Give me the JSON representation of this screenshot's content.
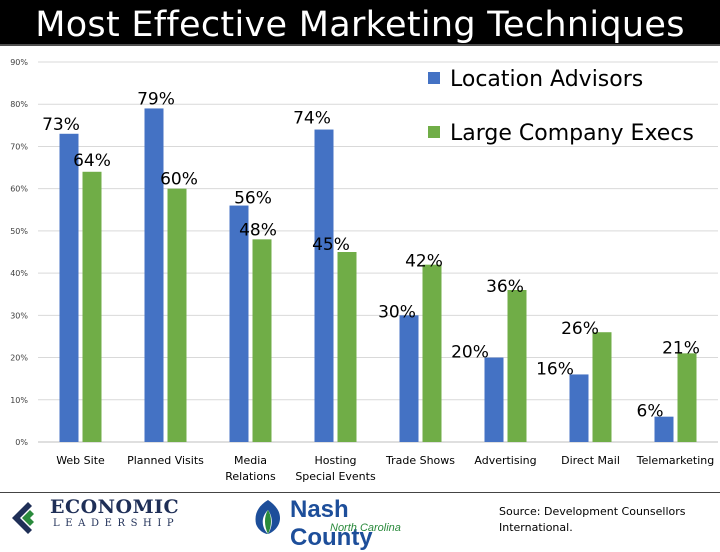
{
  "title": "Most Effective Marketing Techniques",
  "source_text": "Source: Development Counsellors International.",
  "logos": {
    "economic_line1": "ECONOMIC",
    "economic_line2": "LEADERSHIP",
    "nash_line1": "Nash County",
    "nash_line2": "North Carolina"
  },
  "colors": {
    "title_bg": "#000000",
    "title_text": "#ffffff",
    "series_blue": "#4472c4",
    "series_green": "#70ad47",
    "gridline": "#d9d9d9"
  },
  "chart_data": {
    "type": "bar",
    "title": "Most Effective Marketing Techniques",
    "categories": [
      [
        "Web Site"
      ],
      [
        "Planned Visits"
      ],
      [
        "Media",
        "Relations"
      ],
      [
        "Hosting",
        "Special Events"
      ],
      [
        "Trade Shows"
      ],
      [
        "Advertising"
      ],
      [
        "Direct Mail"
      ],
      [
        "Telemarketing"
      ]
    ],
    "series": [
      {
        "name": "Location Advisors",
        "color": "#4472c4",
        "values": [
          73,
          79,
          56,
          74,
          30,
          20,
          16,
          6
        ]
      },
      {
        "name": "Large Company Execs",
        "color": "#70ad47",
        "values": [
          64,
          60,
          48,
          45,
          42,
          36,
          26,
          21
        ]
      }
    ],
    "data_labels": [
      [
        "73%",
        "79%",
        "56%",
        "74%",
        "30%",
        "20%",
        "16%",
        "6%"
      ],
      [
        "64%",
        "60%",
        "48%",
        "45%",
        "42%",
        "36%",
        "26%",
        "21%"
      ]
    ],
    "yticks": [
      "0%",
      "10%",
      "20%",
      "30%",
      "40%",
      "50%",
      "60%",
      "70%",
      "80%",
      "90%"
    ],
    "ylim": [
      0,
      90
    ],
    "grid": true,
    "legend_position": "top-right",
    "xlabel": "",
    "ylabel": ""
  }
}
